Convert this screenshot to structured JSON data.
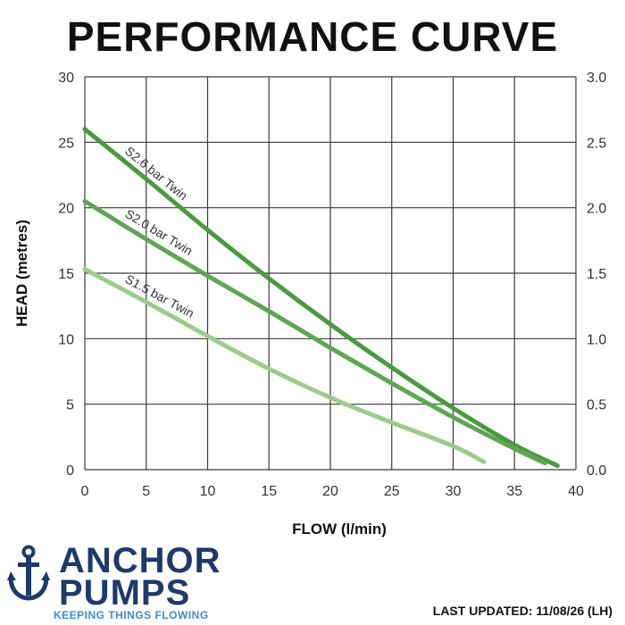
{
  "chart_data": {
    "type": "line",
    "title": "PERFORMANCE CURVE",
    "xlabel": "FLOW (l/min)",
    "ylabel": "HEAD (metres)",
    "xlim": [
      0,
      40
    ],
    "ylim": [
      0,
      30
    ],
    "y2lim": [
      0,
      3
    ],
    "x_ticks": [
      "0",
      "5",
      "10",
      "15",
      "20",
      "25",
      "30",
      "35",
      "40"
    ],
    "y_ticks": [
      "0",
      "5",
      "10",
      "15",
      "20",
      "25",
      "30"
    ],
    "y2_ticks": [
      "0.0",
      "0.5",
      "1.0",
      "1.5",
      "2.0",
      "2.5",
      "3.0"
    ],
    "grid": true,
    "series": [
      {
        "name": "S2.6 bar Twin",
        "color": "#4a9a40",
        "points": [
          [
            0,
            26
          ],
          [
            5,
            22.2
          ],
          [
            10,
            18.3
          ],
          [
            15,
            14.6
          ],
          [
            20,
            11.1
          ],
          [
            25,
            7.8
          ],
          [
            30,
            4.7
          ],
          [
            35,
            1.9
          ],
          [
            38.5,
            0.3
          ]
        ]
      },
      {
        "name": "S2.0 bar Twin",
        "color": "#5fa655",
        "points": [
          [
            0,
            20.5
          ],
          [
            5,
            17.6
          ],
          [
            10,
            14.8
          ],
          [
            15,
            12.1
          ],
          [
            20,
            9.3
          ],
          [
            25,
            6.6
          ],
          [
            30,
            4.0
          ],
          [
            35,
            1.6
          ],
          [
            37.5,
            0.5
          ]
        ]
      },
      {
        "name": "S1.5 bar Twin",
        "color": "#9bcc8b",
        "points": [
          [
            0,
            15.3
          ],
          [
            5,
            12.8
          ],
          [
            10,
            10.2
          ],
          [
            15,
            7.7
          ],
          [
            20,
            5.5
          ],
          [
            25,
            3.6
          ],
          [
            30,
            1.8
          ],
          [
            32.5,
            0.6
          ]
        ]
      }
    ]
  },
  "brand": {
    "line1": "ANCHOR",
    "line2": "PUMPS",
    "tagline": "KEEPING THINGS FLOWING",
    "color": "#1d3a6b",
    "tagline_color": "#3d8bd4",
    "icon": "anchor-icon"
  },
  "footer": {
    "last_updated": "LAST UPDATED: 11/08/26 (LH)"
  }
}
